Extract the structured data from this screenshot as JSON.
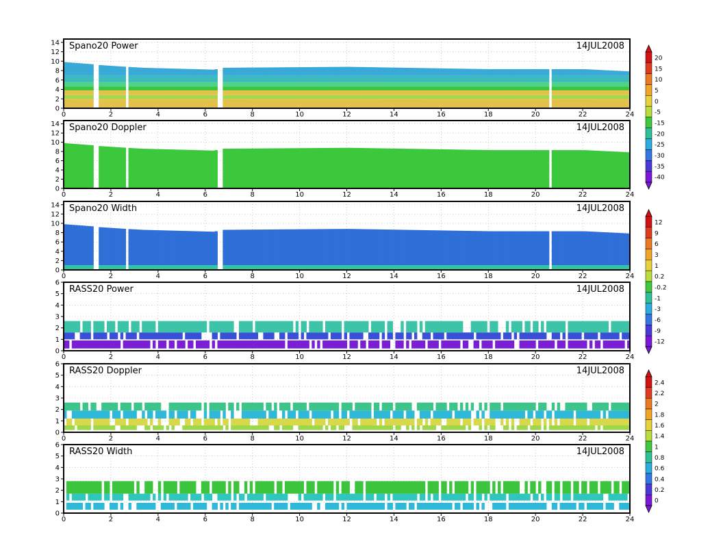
{
  "chart_data": [
    {
      "type": "heatmap",
      "title": "Spano20  Power",
      "date": "14JUL2008",
      "xlim": [
        0,
        24
      ],
      "x_ticks": [
        "0",
        "2",
        "4",
        "6",
        "8",
        "10",
        "12",
        "14",
        "16",
        "18",
        "20",
        "22",
        "24"
      ],
      "ylim": [
        0,
        14.7
      ],
      "y_ticks": [
        "0",
        "2",
        "4",
        "6",
        "8",
        "10",
        "12",
        "14"
      ],
      "colorbar": [
        "20",
        "15",
        "10",
        "5",
        "0",
        "-5",
        "-15",
        "-20",
        "-25",
        "-30",
        "-35",
        "-40"
      ],
      "top_height": [
        [
          0,
          9.8
        ],
        [
          1.3,
          9.3
        ],
        [
          1.4,
          9.2
        ],
        [
          2.6,
          8.8
        ],
        [
          3.3,
          8.6
        ],
        [
          6.3,
          8.2
        ],
        [
          6.7,
          8.6
        ],
        [
          12.0,
          8.8
        ],
        [
          18.0,
          8.3
        ],
        [
          22.0,
          8.3
        ],
        [
          24.0,
          7.8
        ]
      ],
      "gaps_hours": [
        [
          1.25,
          1.45
        ],
        [
          2.52,
          2.68
        ],
        [
          6.4,
          6.7
        ],
        [
          20.52,
          20.62
        ]
      ],
      "bands": [
        [
          0,
          2,
          "#e4c24a"
        ],
        [
          2,
          2.8,
          "#a3d84e"
        ],
        [
          2.8,
          3.8,
          "#e4c24a"
        ],
        [
          3.8,
          4.6,
          "#3dc43d"
        ],
        [
          4.6,
          5.6,
          "#4fd28a"
        ],
        [
          5.6,
          7,
          "#3db9c2"
        ],
        [
          7,
          14.7,
          "#39a9d8"
        ]
      ]
    },
    {
      "type": "heatmap",
      "title": "Spano20  Doppler",
      "date": "14JUL2008",
      "xlim": [
        0,
        24
      ],
      "x_ticks": [
        "0",
        "2",
        "4",
        "6",
        "8",
        "10",
        "12",
        "14",
        "16",
        "18",
        "20",
        "22",
        "24"
      ],
      "ylim": [
        0,
        14.7
      ],
      "y_ticks": [
        "0",
        "2",
        "4",
        "6",
        "8",
        "10",
        "12",
        "14"
      ],
      "top_height": [
        [
          0,
          9.8
        ],
        [
          1.3,
          9.3
        ],
        [
          1.4,
          9.2
        ],
        [
          2.6,
          8.8
        ],
        [
          3.3,
          8.6
        ],
        [
          6.3,
          8.2
        ],
        [
          6.7,
          8.6
        ],
        [
          12.0,
          8.8
        ],
        [
          18.0,
          8.3
        ],
        [
          22.0,
          8.3
        ],
        [
          24.0,
          7.8
        ]
      ],
      "gaps_hours": [
        [
          1.25,
          1.45
        ],
        [
          2.52,
          2.68
        ],
        [
          6.4,
          6.7
        ],
        [
          20.52,
          20.62
        ]
      ],
      "bands": [
        [
          0,
          14.7,
          "#3cc83c"
        ]
      ]
    },
    {
      "type": "heatmap",
      "title": "Spano20  Width",
      "date": "14JUL2008",
      "xlim": [
        0,
        24
      ],
      "x_ticks": [
        "0",
        "2",
        "4",
        "6",
        "8",
        "10",
        "12",
        "14",
        "16",
        "18",
        "20",
        "22",
        "24"
      ],
      "ylim": [
        0,
        14.7
      ],
      "y_ticks": [
        "0",
        "2",
        "4",
        "6",
        "8",
        "10",
        "12",
        "14"
      ],
      "colorbar": [
        "12",
        "9",
        "6",
        "3",
        "1",
        "0.2",
        "-0.2",
        "-1",
        "-3",
        "-6",
        "-9",
        "-12"
      ],
      "top_height": [
        [
          0,
          9.8
        ],
        [
          1.3,
          9.3
        ],
        [
          1.4,
          9.2
        ],
        [
          2.6,
          8.8
        ],
        [
          3.3,
          8.6
        ],
        [
          6.3,
          8.2
        ],
        [
          6.7,
          8.6
        ],
        [
          12.0,
          8.8
        ],
        [
          18.0,
          8.3
        ],
        [
          22.0,
          8.3
        ],
        [
          24.0,
          7.8
        ]
      ],
      "gaps_hours": [
        [
          1.25,
          1.45
        ],
        [
          2.52,
          2.68
        ],
        [
          6.4,
          6.7
        ],
        [
          20.52,
          20.62
        ]
      ],
      "bands": [
        [
          0,
          1,
          "#2fc6a0"
        ],
        [
          1,
          14.7,
          "#2f6fd8"
        ]
      ]
    },
    {
      "type": "heatmap",
      "title": "RASS20  Power",
      "date": "14JUL2008",
      "xlim": [
        0,
        24
      ],
      "x_ticks": [
        "0",
        "2",
        "4",
        "6",
        "8",
        "10",
        "12",
        "14",
        "16",
        "18",
        "20",
        "22",
        "24"
      ],
      "ylim": [
        0,
        6
      ],
      "y_ticks": [
        "0",
        "1",
        "2",
        "3",
        "4",
        "5",
        "6"
      ],
      "bands": [
        [
          0.2,
          0.9,
          "#7a1fd6"
        ],
        [
          1.0,
          1.6,
          "#3a4fd8"
        ],
        [
          1.6,
          2.6,
          "#3dc4a8"
        ]
      ]
    },
    {
      "type": "heatmap",
      "title": "RASS20  Doppler",
      "date": "14JUL2008",
      "xlim": [
        0,
        24
      ],
      "x_ticks": [
        "0",
        "2",
        "4",
        "6",
        "8",
        "10",
        "12",
        "14",
        "16",
        "18",
        "20",
        "22",
        "24"
      ],
      "ylim": [
        0,
        6
      ],
      "y_ticks": [
        "0",
        "1",
        "2",
        "3",
        "4",
        "5",
        "6"
      ],
      "colorbar": [
        "2.4",
        "2.2",
        "2",
        "1.8",
        "1.6",
        "1.4",
        "1",
        "0.8",
        "0.6",
        "0.4",
        "0.2",
        "0"
      ],
      "bands": [
        [
          0.2,
          0.6,
          "#9cd84a"
        ],
        [
          0.6,
          1.2,
          "#d8d84a"
        ],
        [
          1.2,
          1.9,
          "#2fb8d8"
        ],
        [
          1.9,
          2.6,
          "#3dc48a"
        ]
      ]
    },
    {
      "type": "heatmap",
      "title": "RASS20  Width",
      "date": "14JUL2008",
      "xlim": [
        0,
        24
      ],
      "x_ticks": [
        "0",
        "2",
        "4",
        "6",
        "8",
        "10",
        "12",
        "14",
        "16",
        "18",
        "20",
        "22",
        "24"
      ],
      "ylim": [
        0,
        6
      ],
      "y_ticks": [
        "0",
        "1",
        "2",
        "3",
        "4",
        "5",
        "6"
      ],
      "bands": [
        [
          0.3,
          0.9,
          "#2fb8d8"
        ],
        [
          1.1,
          1.7,
          "#2fc6c0"
        ],
        [
          1.7,
          2.8,
          "#3dc43d"
        ]
      ]
    }
  ],
  "colorscale": [
    "#d41111",
    "#e23a1e",
    "#ee7a1f",
    "#f2a623",
    "#e8d23a",
    "#b9dd3a",
    "#3ec83e",
    "#2fc196",
    "#28aee0",
    "#3177e6",
    "#4a38d8",
    "#7b18d8"
  ]
}
